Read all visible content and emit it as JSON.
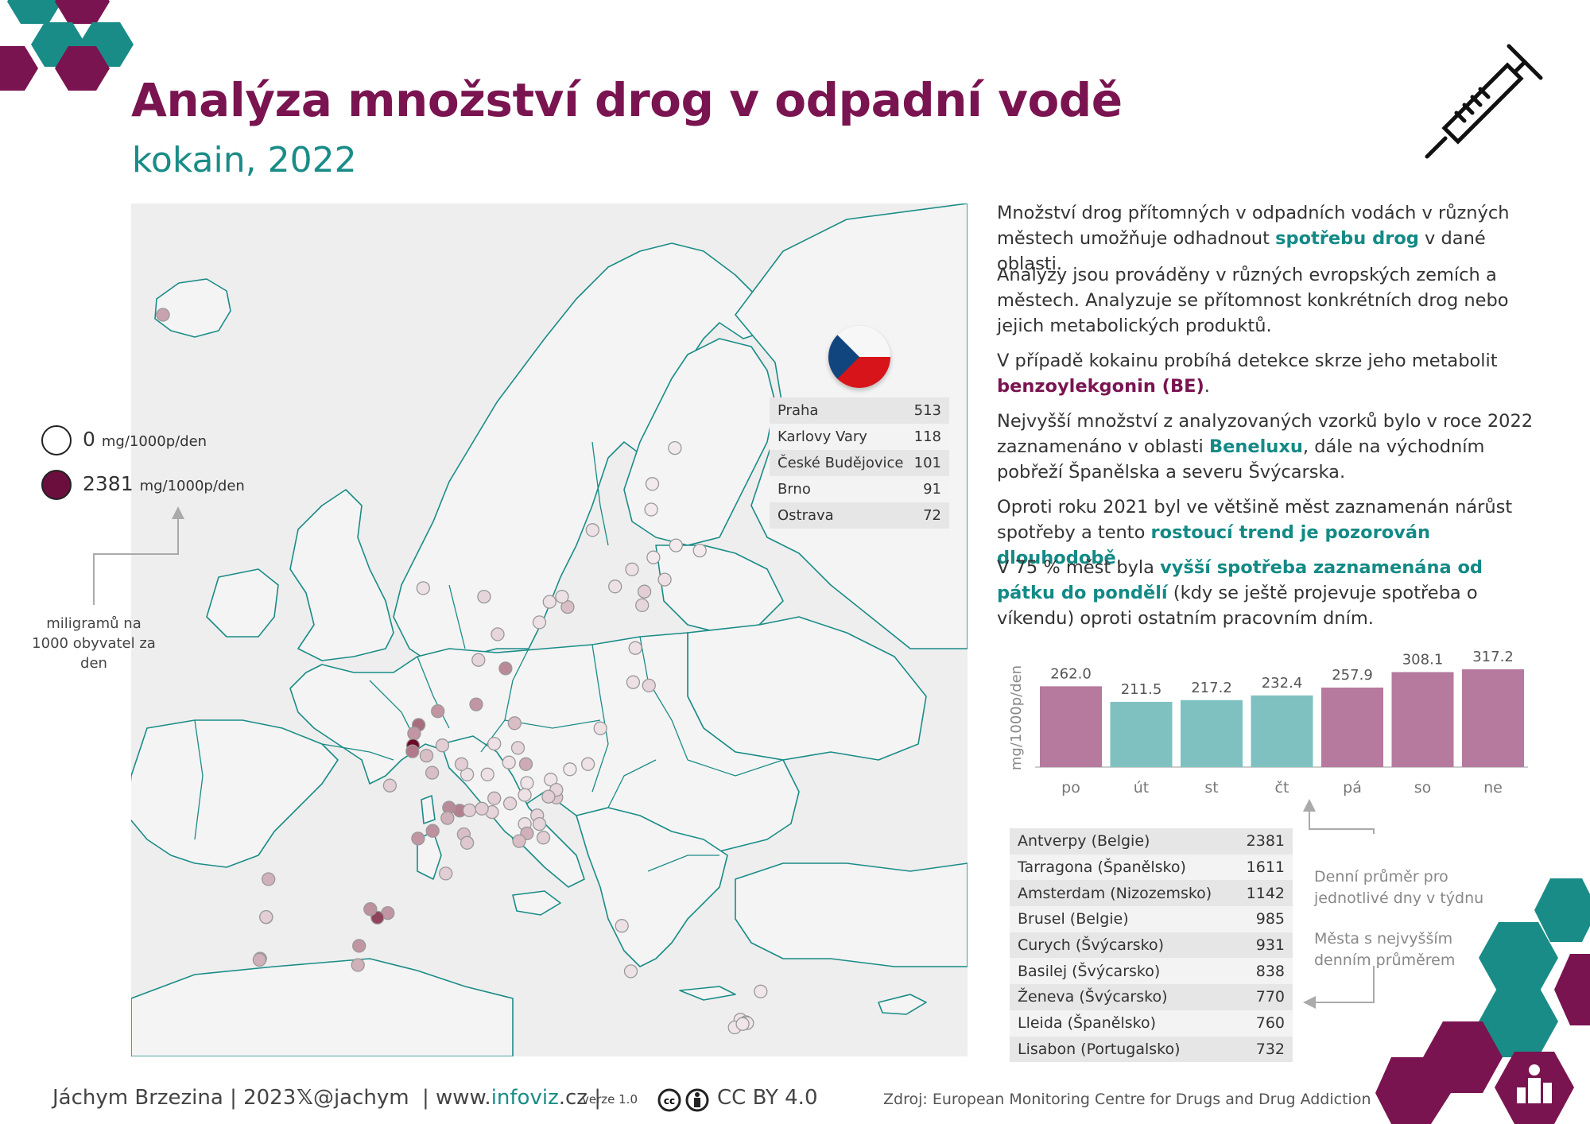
{
  "header": {
    "title": "Analýza množství drog v odpadní vodě",
    "subtitle": "kokain, 2022"
  },
  "legend": {
    "min_value": "0",
    "min_unit": "mg/1000p/den",
    "max_value": "2381",
    "max_unit": "mg/1000p/den",
    "note": "miligramů na 1000 obyvatel za den"
  },
  "cz_table": [
    {
      "city": "Praha",
      "value": "513"
    },
    {
      "city": "Karlovy Vary",
      "value": "118"
    },
    {
      "city": "České Budějovice",
      "value": "101"
    },
    {
      "city": "Brno",
      "value": "91"
    },
    {
      "city": "Ostrava",
      "value": "72"
    }
  ],
  "text": {
    "p1_a": "Množství drog přítomných v odpadních vodách v různých městech umožňuje odhadnout ",
    "p1_b": "spotřebu drog",
    "p1_c": " v dané oblasti.",
    "p2": "Analýzy jsou prováděny v různých evropských zemích a městech. Analyzuje se přítomnost konkrétních drog nebo jejich metabolických produktů.",
    "p3_a": "V případě kokainu probíhá detekce skrze jeho metabolit ",
    "p3_b": "benzoylekgonin (BE)",
    "p3_c": ".",
    "p4_a": "Nejvyšší množství z analyzovaných vzorků bylo v roce 2022 zaznamenáno v oblasti ",
    "p4_b": "Beneluxu",
    "p4_c": ", dále na východním pobřeží Španělska a severu Švýcarska.",
    "p5_a": "Oproti roku 2021 byl ve většině měst zaznamenán nárůst spotřeby a tento ",
    "p5_b": "rostoucí trend je pozorován dlouhodobě",
    "p5_c": ".",
    "p6_a": "V 75 % měst byla ",
    "p6_b": "vyšší spotřeba zaznamenána od pátku do pondělí",
    "p6_c": " (kdy se ještě projevuje spotřeba o víkendu) oproti ostatním pracovním dním."
  },
  "chart_data": {
    "type": "bar",
    "ylabel": "mg/1000p/den",
    "categories": [
      "po",
      "út",
      "st",
      "čt",
      "pá",
      "so",
      "ne"
    ],
    "values": [
      262.0,
      211.5,
      217.2,
      232.4,
      257.9,
      308.1,
      317.2
    ],
    "value_labels": [
      "262.0",
      "211.5",
      "217.2",
      "232.4",
      "257.9",
      "308.1",
      "317.2"
    ],
    "colors": [
      "#b57a9d",
      "#7fc1c0",
      "#7fc1c0",
      "#7fc1c0",
      "#b57a9d",
      "#b57a9d",
      "#b57a9d"
    ],
    "ylim": [
      0,
      330
    ]
  },
  "notes": {
    "daily_avg": "Denní průměr pro jednotlivé dny v týdnu",
    "top_cities": "Města s nejvyšším denním průměrem"
  },
  "top_table": [
    {
      "city": "Antverpy (Belgie)",
      "value": "2381"
    },
    {
      "city": "Tarragona (Španělsko)",
      "value": "1611"
    },
    {
      "city": "Amsterdam (Nizozemsko)",
      "value": "1142"
    },
    {
      "city": "Brusel (Belgie)",
      "value": "985"
    },
    {
      "city": "Curych (Švýcarsko)",
      "value": "931"
    },
    {
      "city": "Basilej (Švýcarsko)",
      "value": "838"
    },
    {
      "city": "Ženeva (Švýcarsko)",
      "value": "770"
    },
    {
      "city": "Lleida (Španělsko)",
      "value": "760"
    },
    {
      "city": "Lisabon (Portugalsko)",
      "value": "732"
    }
  ],
  "footer": {
    "author": "Jáchym Brzezina | 2023",
    "x_handle": "@jachym",
    "site_prefix": "| www.",
    "site_bold": "infoviz",
    "site_suffix": ".cz |",
    "version": "verze 1.0",
    "license": "CC BY 4.0",
    "source": "Zdroj: European Monitoring Centre for Drugs and Drug Addiction"
  },
  "map_points": [
    {
      "lon": -21.9,
      "lat": 64.1,
      "v": 0.25
    },
    {
      "lon": 24.9,
      "lat": 60.2,
      "v": 0.1
    },
    {
      "lon": 23.8,
      "lat": 61.5,
      "v": 0.05
    },
    {
      "lon": 22.3,
      "lat": 60.5,
      "v": 0.05
    },
    {
      "lon": 25.7,
      "lat": 62.2,
      "v": 0.03
    },
    {
      "lon": 25.5,
      "lat": 65.0,
      "v": 0.03
    },
    {
      "lon": 27.7,
      "lat": 62.9,
      "v": 0.03
    },
    {
      "lon": 29.8,
      "lat": 62.6,
      "v": 0.03
    },
    {
      "lon": 25.6,
      "lat": 66.5,
      "v": 0.03
    },
    {
      "lon": 27.6,
      "lat": 68.6,
      "v": 0.03
    },
    {
      "lon": 26.7,
      "lat": 60.9,
      "v": 0.05
    },
    {
      "lon": 18.1,
      "lat": 59.3,
      "v": 0.15
    },
    {
      "lon": 17.6,
      "lat": 59.9,
      "v": 0.05
    },
    {
      "lon": 16.5,
      "lat": 59.6,
      "v": 0.05
    },
    {
      "lon": 15.6,
      "lat": 58.4,
      "v": 0.05
    },
    {
      "lon": 20.3,
      "lat": 63.8,
      "v": 0.05
    },
    {
      "lon": 11.9,
      "lat": 57.7,
      "v": 0.08
    },
    {
      "lon": 10.7,
      "lat": 59.9,
      "v": 0.08
    },
    {
      "lon": 5.3,
      "lat": 60.4,
      "v": 0.05
    },
    {
      "lon": 24.7,
      "lat": 59.4,
      "v": 0.08
    },
    {
      "lon": 24.1,
      "lat": 56.9,
      "v": 0.05
    },
    {
      "lon": 25.3,
      "lat": 54.7,
      "v": 0.08
    },
    {
      "lon": 23.9,
      "lat": 54.9,
      "v": 0.05
    },
    {
      "lon": 12.6,
      "lat": 55.7,
      "v": 0.35
    },
    {
      "lon": 10.2,
      "lat": 56.2,
      "v": 0.08
    },
    {
      "lon": 4.9,
      "lat": 52.4,
      "v": 0.48
    },
    {
      "lon": 4.5,
      "lat": 51.9,
      "v": 0.3
    },
    {
      "lon": 6.6,
      "lat": 53.2,
      "v": 0.3
    },
    {
      "lon": 4.4,
      "lat": 51.2,
      "v": 1.0
    },
    {
      "lon": 4.35,
      "lat": 50.85,
      "v": 0.42
    },
    {
      "lon": 5.6,
      "lat": 50.6,
      "v": 0.15
    },
    {
      "lon": 6.1,
      "lat": 49.6,
      "v": 0.15
    },
    {
      "lon": 7.0,
      "lat": 51.2,
      "v": 0.1
    },
    {
      "lon": 10.0,
      "lat": 53.6,
      "v": 0.3
    },
    {
      "lon": 13.4,
      "lat": 52.5,
      "v": 0.15
    },
    {
      "lon": 11.6,
      "lat": 51.3,
      "v": 0.05
    },
    {
      "lon": 13.7,
      "lat": 51.05,
      "v": 0.08
    },
    {
      "lon": 9.2,
      "lat": 49.5,
      "v": 0.05
    },
    {
      "lon": 8.7,
      "lat": 50.1,
      "v": 0.1
    },
    {
      "lon": 11.0,
      "lat": 49.5,
      "v": 0.05
    },
    {
      "lon": 11.6,
      "lat": 48.1,
      "v": 0.1
    },
    {
      "lon": 14.4,
      "lat": 50.1,
      "v": 0.22
    },
    {
      "lon": 12.9,
      "lat": 50.2,
      "v": 0.05
    },
    {
      "lon": 14.5,
      "lat": 49.0,
      "v": 0.04
    },
    {
      "lon": 16.6,
      "lat": 49.2,
      "v": 0.04
    },
    {
      "lon": 18.3,
      "lat": 49.8,
      "v": 0.03
    },
    {
      "lon": 17.1,
      "lat": 48.15,
      "v": 0.12
    },
    {
      "lon": 17.1,
      "lat": 48.6,
      "v": 0.08
    },
    {
      "lon": 19.9,
      "lat": 50.1,
      "v": 0.05
    },
    {
      "lon": 21.0,
      "lat": 52.2,
      "v": 0.05
    },
    {
      "lon": 16.4,
      "lat": 48.2,
      "v": 0.1
    },
    {
      "lon": 14.3,
      "lat": 48.3,
      "v": 0.05
    },
    {
      "lon": 13.0,
      "lat": 47.8,
      "v": 0.08
    },
    {
      "lon": 15.4,
      "lat": 47.1,
      "v": 0.08
    },
    {
      "lon": 11.4,
      "lat": 47.3,
      "v": 0.08
    },
    {
      "lon": 14.3,
      "lat": 46.6,
      "v": 0.05
    },
    {
      "lon": 14.5,
      "lat": 46.05,
      "v": 0.2
    },
    {
      "lon": 15.6,
      "lat": 46.6,
      "v": 0.08
    },
    {
      "lon": 15.95,
      "lat": 45.8,
      "v": 0.1
    },
    {
      "lon": 13.8,
      "lat": 45.6,
      "v": 0.15
    },
    {
      "lon": 8.54,
      "lat": 47.38,
      "v": 0.39
    },
    {
      "lon": 7.59,
      "lat": 47.56,
      "v": 0.35
    },
    {
      "lon": 6.14,
      "lat": 46.2,
      "v": 0.32
    },
    {
      "lon": 7.45,
      "lat": 46.95,
      "v": 0.2
    },
    {
      "lon": 9.4,
      "lat": 47.4,
      "v": 0.1
    },
    {
      "lon": 8.9,
      "lat": 46.0,
      "v": 0.15
    },
    {
      "lon": 9.2,
      "lat": 45.5,
      "v": 0.12
    },
    {
      "lon": 10.5,
      "lat": 47.5,
      "v": 0.1
    },
    {
      "lon": 4.85,
      "lat": 45.75,
      "v": 0.3
    },
    {
      "lon": 7.3,
      "lat": 43.7,
      "v": 0.1
    },
    {
      "lon": 2.35,
      "lat": 48.85,
      "v": 0.1
    },
    {
      "lon": 2.17,
      "lat": 41.39,
      "v": 0.3
    },
    {
      "lon": 1.25,
      "lat": 41.12,
      "v": 0.68
    },
    {
      "lon": 0.62,
      "lat": 41.62,
      "v": 0.32
    },
    {
      "lon": -0.37,
      "lat": 39.47,
      "v": 0.3
    },
    {
      "lon": -0.48,
      "lat": 38.35,
      "v": 0.2
    },
    {
      "lon": -8.6,
      "lat": 41.15,
      "v": 0.12
    },
    {
      "lon": -8.61,
      "lat": 41.16,
      "v": 0.1
    },
    {
      "lon": -9.14,
      "lat": 38.72,
      "v": 0.31
    },
    {
      "lon": -9.2,
      "lat": 38.65,
      "v": 0.2
    },
    {
      "lon": -8.4,
      "lat": 43.37,
      "v": 0.2
    },
    {
      "lon": 23.7,
      "lat": 37.98,
      "v": 0.05
    },
    {
      "lon": 22.9,
      "lat": 40.64,
      "v": 0.05
    },
    {
      "lon": 33.4,
      "lat": 35.15,
      "v": 0.04
    },
    {
      "lon": 32.9,
      "lat": 34.7,
      "v": 0.04
    },
    {
      "lon": 33.9,
      "lat": 35.0,
      "v": 0.04
    },
    {
      "lon": 34.0,
      "lat": 34.95,
      "v": 0.04
    },
    {
      "lon": 33.6,
      "lat": 34.9,
      "v": 0.04
    },
    {
      "lon": 35.2,
      "lat": 36.8,
      "v": 0.04
    }
  ]
}
